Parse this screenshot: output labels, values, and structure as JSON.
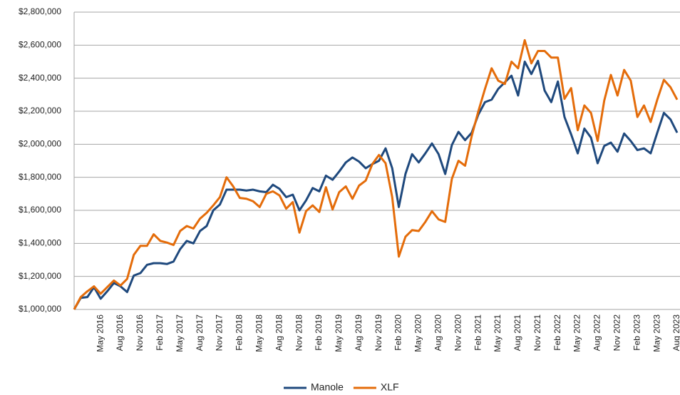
{
  "chart_data": {
    "type": "line",
    "categories": [
      null,
      null,
      null,
      null,
      "May 2016",
      null,
      null,
      "Aug 2016",
      null,
      null,
      "Nov 2016",
      null,
      null,
      "Feb 2017",
      null,
      null,
      "May 2017",
      null,
      null,
      "Aug 2017",
      null,
      null,
      "Nov 2017",
      null,
      null,
      "Feb 2018",
      null,
      null,
      "May 2018",
      null,
      null,
      "Aug 2018",
      null,
      null,
      "Nov 2018",
      null,
      null,
      "Feb 2019",
      null,
      null,
      "May 2019",
      null,
      null,
      "Aug 2019",
      null,
      null,
      "Nov 2019",
      null,
      null,
      "Feb 2020",
      null,
      null,
      "May 2020",
      null,
      null,
      "Aug 2020",
      null,
      null,
      "Nov 2020",
      null,
      null,
      "Feb 2021",
      null,
      null,
      "May 2021",
      null,
      null,
      "Aug 2021",
      null,
      null,
      "Nov 2021",
      null,
      null,
      "Feb 2022",
      null,
      null,
      "May 2022",
      null,
      null,
      "Aug 2022",
      null,
      null,
      "Nov 2022",
      null,
      null,
      "Feb 2023",
      null,
      null,
      "May 2023",
      null,
      null,
      "Aug 2023"
    ],
    "series": [
      {
        "name": "Manole",
        "color": "#1f497d",
        "values": [
          1000000,
          1070000,
          1075000,
          1135000,
          1065000,
          1110000,
          1160000,
          1140000,
          1105000,
          1205000,
          1220000,
          1270000,
          1280000,
          1280000,
          1275000,
          1290000,
          1365000,
          1415000,
          1400000,
          1475000,
          1505000,
          1600000,
          1635000,
          1725000,
          1725000,
          1725000,
          1720000,
          1725000,
          1715000,
          1710000,
          1755000,
          1730000,
          1680000,
          1695000,
          1600000,
          1660000,
          1735000,
          1715000,
          1810000,
          1785000,
          1835000,
          1890000,
          1920000,
          1895000,
          1855000,
          1880000,
          1900000,
          1975000,
          1855000,
          1620000,
          1820000,
          1940000,
          1890000,
          1945000,
          2005000,
          1940000,
          1820000,
          1995000,
          2075000,
          2025000,
          2070000,
          2180000,
          2255000,
          2270000,
          2335000,
          2375000,
          2415000,
          2295000,
          2500000,
          2425000,
          2505000,
          2325000,
          2255000,
          2380000,
          2165000,
          2060000,
          1945000,
          2095000,
          2040000,
          1885000,
          1990000,
          2010000,
          1955000,
          2065000,
          2020000,
          1965000,
          1975000,
          1945000,
          2070000,
          2190000,
          2150000,
          2070000
        ]
      },
      {
        "name": "XLF",
        "color": "#e46c0a",
        "values": [
          1000000,
          1075000,
          1110000,
          1140000,
          1095000,
          1135000,
          1175000,
          1145000,
          1185000,
          1330000,
          1385000,
          1385000,
          1455000,
          1415000,
          1405000,
          1390000,
          1475000,
          1505000,
          1490000,
          1550000,
          1585000,
          1630000,
          1680000,
          1800000,
          1745000,
          1675000,
          1670000,
          1655000,
          1620000,
          1700000,
          1715000,
          1690000,
          1610000,
          1650000,
          1465000,
          1595000,
          1630000,
          1590000,
          1740000,
          1605000,
          1710000,
          1745000,
          1670000,
          1750000,
          1780000,
          1880000,
          1935000,
          1885000,
          1680000,
          1320000,
          1440000,
          1480000,
          1475000,
          1530000,
          1595000,
          1545000,
          1530000,
          1790000,
          1900000,
          1870000,
          2050000,
          2200000,
          2335000,
          2460000,
          2385000,
          2365000,
          2500000,
          2460000,
          2630000,
          2490000,
          2565000,
          2565000,
          2525000,
          2525000,
          2275000,
          2340000,
          2085000,
          2235000,
          2190000,
          2020000,
          2265000,
          2420000,
          2295000,
          2450000,
          2385000,
          2165000,
          2235000,
          2135000,
          2270000,
          2390000,
          2345000,
          2270000
        ]
      }
    ],
    "ylim": [
      1000000,
      2800000
    ],
    "yticks": [
      {
        "value": 1000000,
        "label": "$1,000,000"
      },
      {
        "value": 1200000,
        "label": "$1,200,000"
      },
      {
        "value": 1400000,
        "label": "$1,400,000"
      },
      {
        "value": 1600000,
        "label": "$1,600,000"
      },
      {
        "value": 1800000,
        "label": "$1,800,000"
      },
      {
        "value": 2000000,
        "label": "$2,000,000"
      },
      {
        "value": 2200000,
        "label": "$2,200,000"
      },
      {
        "value": 2400000,
        "label": "$2,400,000"
      },
      {
        "value": 2600000,
        "label": "$2,600,000"
      },
      {
        "value": 2800000,
        "label": "$2,800,000"
      }
    ],
    "grid": true,
    "legend": "bottom"
  }
}
